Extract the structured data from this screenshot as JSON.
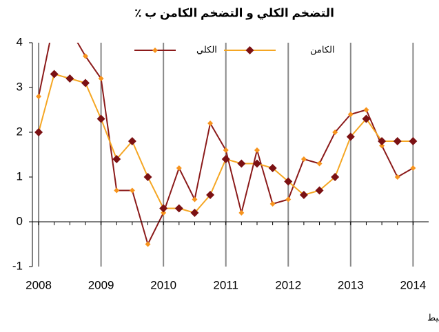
{
  "chart_data": {
    "type": "line",
    "title": "التضخم الكلي و التضخم الكامن ب ٪",
    "source": "المصدر : المندوبية السامية للتخطيط",
    "x": [
      2008,
      2008.25,
      2008.5,
      2008.75,
      2009,
      2009.25,
      2009.5,
      2009.75,
      2010,
      2010.25,
      2010.5,
      2010.75,
      2011,
      2011.25,
      2011.5,
      2011.75,
      2012,
      2012.25,
      2012.5,
      2012.75,
      2013,
      2013.25,
      2013.5,
      2013.75,
      2014
    ],
    "xlim": [
      2007.9,
      2014.25
    ],
    "xticks": [
      2008,
      2009,
      2010,
      2011,
      2012,
      2013,
      2014
    ],
    "ylim": [
      -1,
      4
    ],
    "yticks": [
      -1,
      0,
      1,
      2,
      3,
      4
    ],
    "grid": "x",
    "legend": "top",
    "series": [
      {
        "name": "الكلي",
        "color": "#8b1a1a",
        "marker_color": "#f7941d",
        "values": [
          2.8,
          4.5,
          4.3,
          3.7,
          3.2,
          0.7,
          0.7,
          -0.5,
          0.2,
          1.2,
          0.5,
          2.2,
          1.6,
          0.2,
          1.6,
          0.4,
          0.5,
          1.4,
          1.3,
          2.0,
          2.4,
          2.5,
          1.7,
          1.0,
          1.2
        ]
      },
      {
        "name": "الكامن",
        "color": "#f5a623",
        "marker_color": "#7b1113",
        "values": [
          2.0,
          3.3,
          3.2,
          3.1,
          2.3,
          1.4,
          1.8,
          1.0,
          0.3,
          0.3,
          0.2,
          0.6,
          1.4,
          1.3,
          1.3,
          1.2,
          0.9,
          0.6,
          0.7,
          1.0,
          1.9,
          2.3,
          1.8,
          1.8,
          1.8
        ]
      }
    ]
  }
}
